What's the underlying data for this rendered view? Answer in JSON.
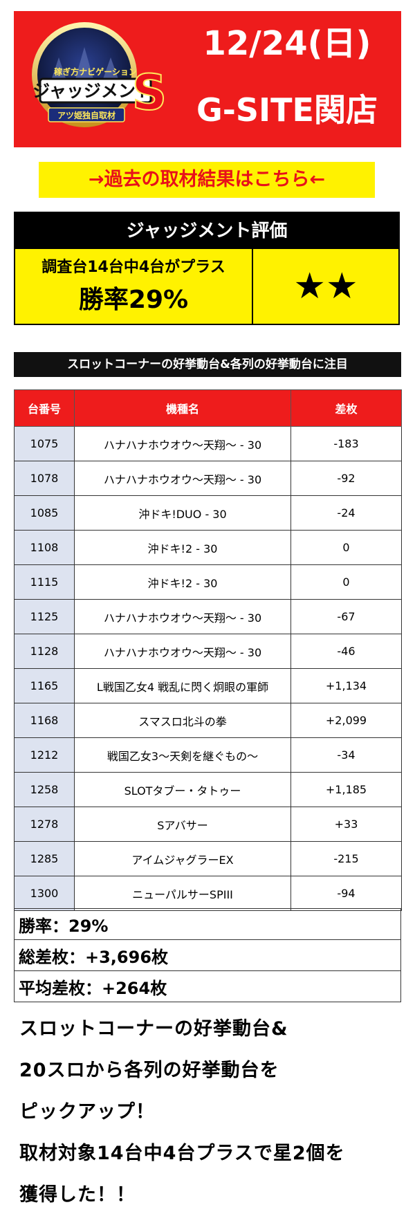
{
  "header": {
    "date": "12/24(日)",
    "store": "G-SITE関店",
    "logo": {
      "small_text": "稼ぎ方ナビゲーション",
      "main_text": "ジャッジメント",
      "letter": "S",
      "sub_text": "アツ姫独自取材"
    }
  },
  "past_link_label": "→過去の取材結果はこちら←",
  "judgement": {
    "heading": "ジャッジメント評価",
    "summary": "調査台14台中4台がプラス",
    "win_rate": "勝率29%",
    "stars": "★★"
  },
  "corner_banner": "スロットコーナーの好挙動台&各列の好挙動台に注目",
  "table": {
    "headers": [
      "台番号",
      "機種名",
      "差枚"
    ],
    "rows": [
      {
        "no": "1075",
        "model": "ハナハナホウオウ～天翔～ - 30",
        "diff": "-183"
      },
      {
        "no": "1078",
        "model": "ハナハナホウオウ～天翔～ - 30",
        "diff": "-92"
      },
      {
        "no": "1085",
        "model": "沖ドキ!DUO - 30",
        "diff": "-24"
      },
      {
        "no": "1108",
        "model": "沖ドキ!2 - 30",
        "diff": "0"
      },
      {
        "no": "1115",
        "model": "沖ドキ!2 - 30",
        "diff": "0"
      },
      {
        "no": "1125",
        "model": "ハナハナホウオウ～天翔～ - 30",
        "diff": "-67"
      },
      {
        "no": "1128",
        "model": "ハナハナホウオウ～天翔～ - 30",
        "diff": "-46"
      },
      {
        "no": "1165",
        "model": "L戦国乙女4 戦乱に閃く炯眼の軍師",
        "diff": "+1,134"
      },
      {
        "no": "1168",
        "model": "スマスロ北斗の拳",
        "diff": "+2,099"
      },
      {
        "no": "1212",
        "model": "戦国乙女3～天剣を継ぐもの～",
        "diff": "-34"
      },
      {
        "no": "1258",
        "model": "SLOTタブー・タトゥー",
        "diff": "+1,185"
      },
      {
        "no": "1278",
        "model": "Sアバサー",
        "diff": "+33"
      },
      {
        "no": "1285",
        "model": "アイムジャグラーEX",
        "diff": "-215"
      },
      {
        "no": "1300",
        "model": "ニューパルサーSPIII",
        "diff": "-94"
      }
    ]
  },
  "summary": {
    "win_rate": "勝率：29%",
    "total": "総差枚：+3,696枚",
    "average": "平均差枚：+264枚"
  },
  "footer_lines": [
    "スロットコーナーの好挙動台&",
    "20スロから各列の好挙動台を",
    "ピックアップ！",
    "取材対象14台中4台プラスで星2個を",
    "獲得した！！"
  ]
}
